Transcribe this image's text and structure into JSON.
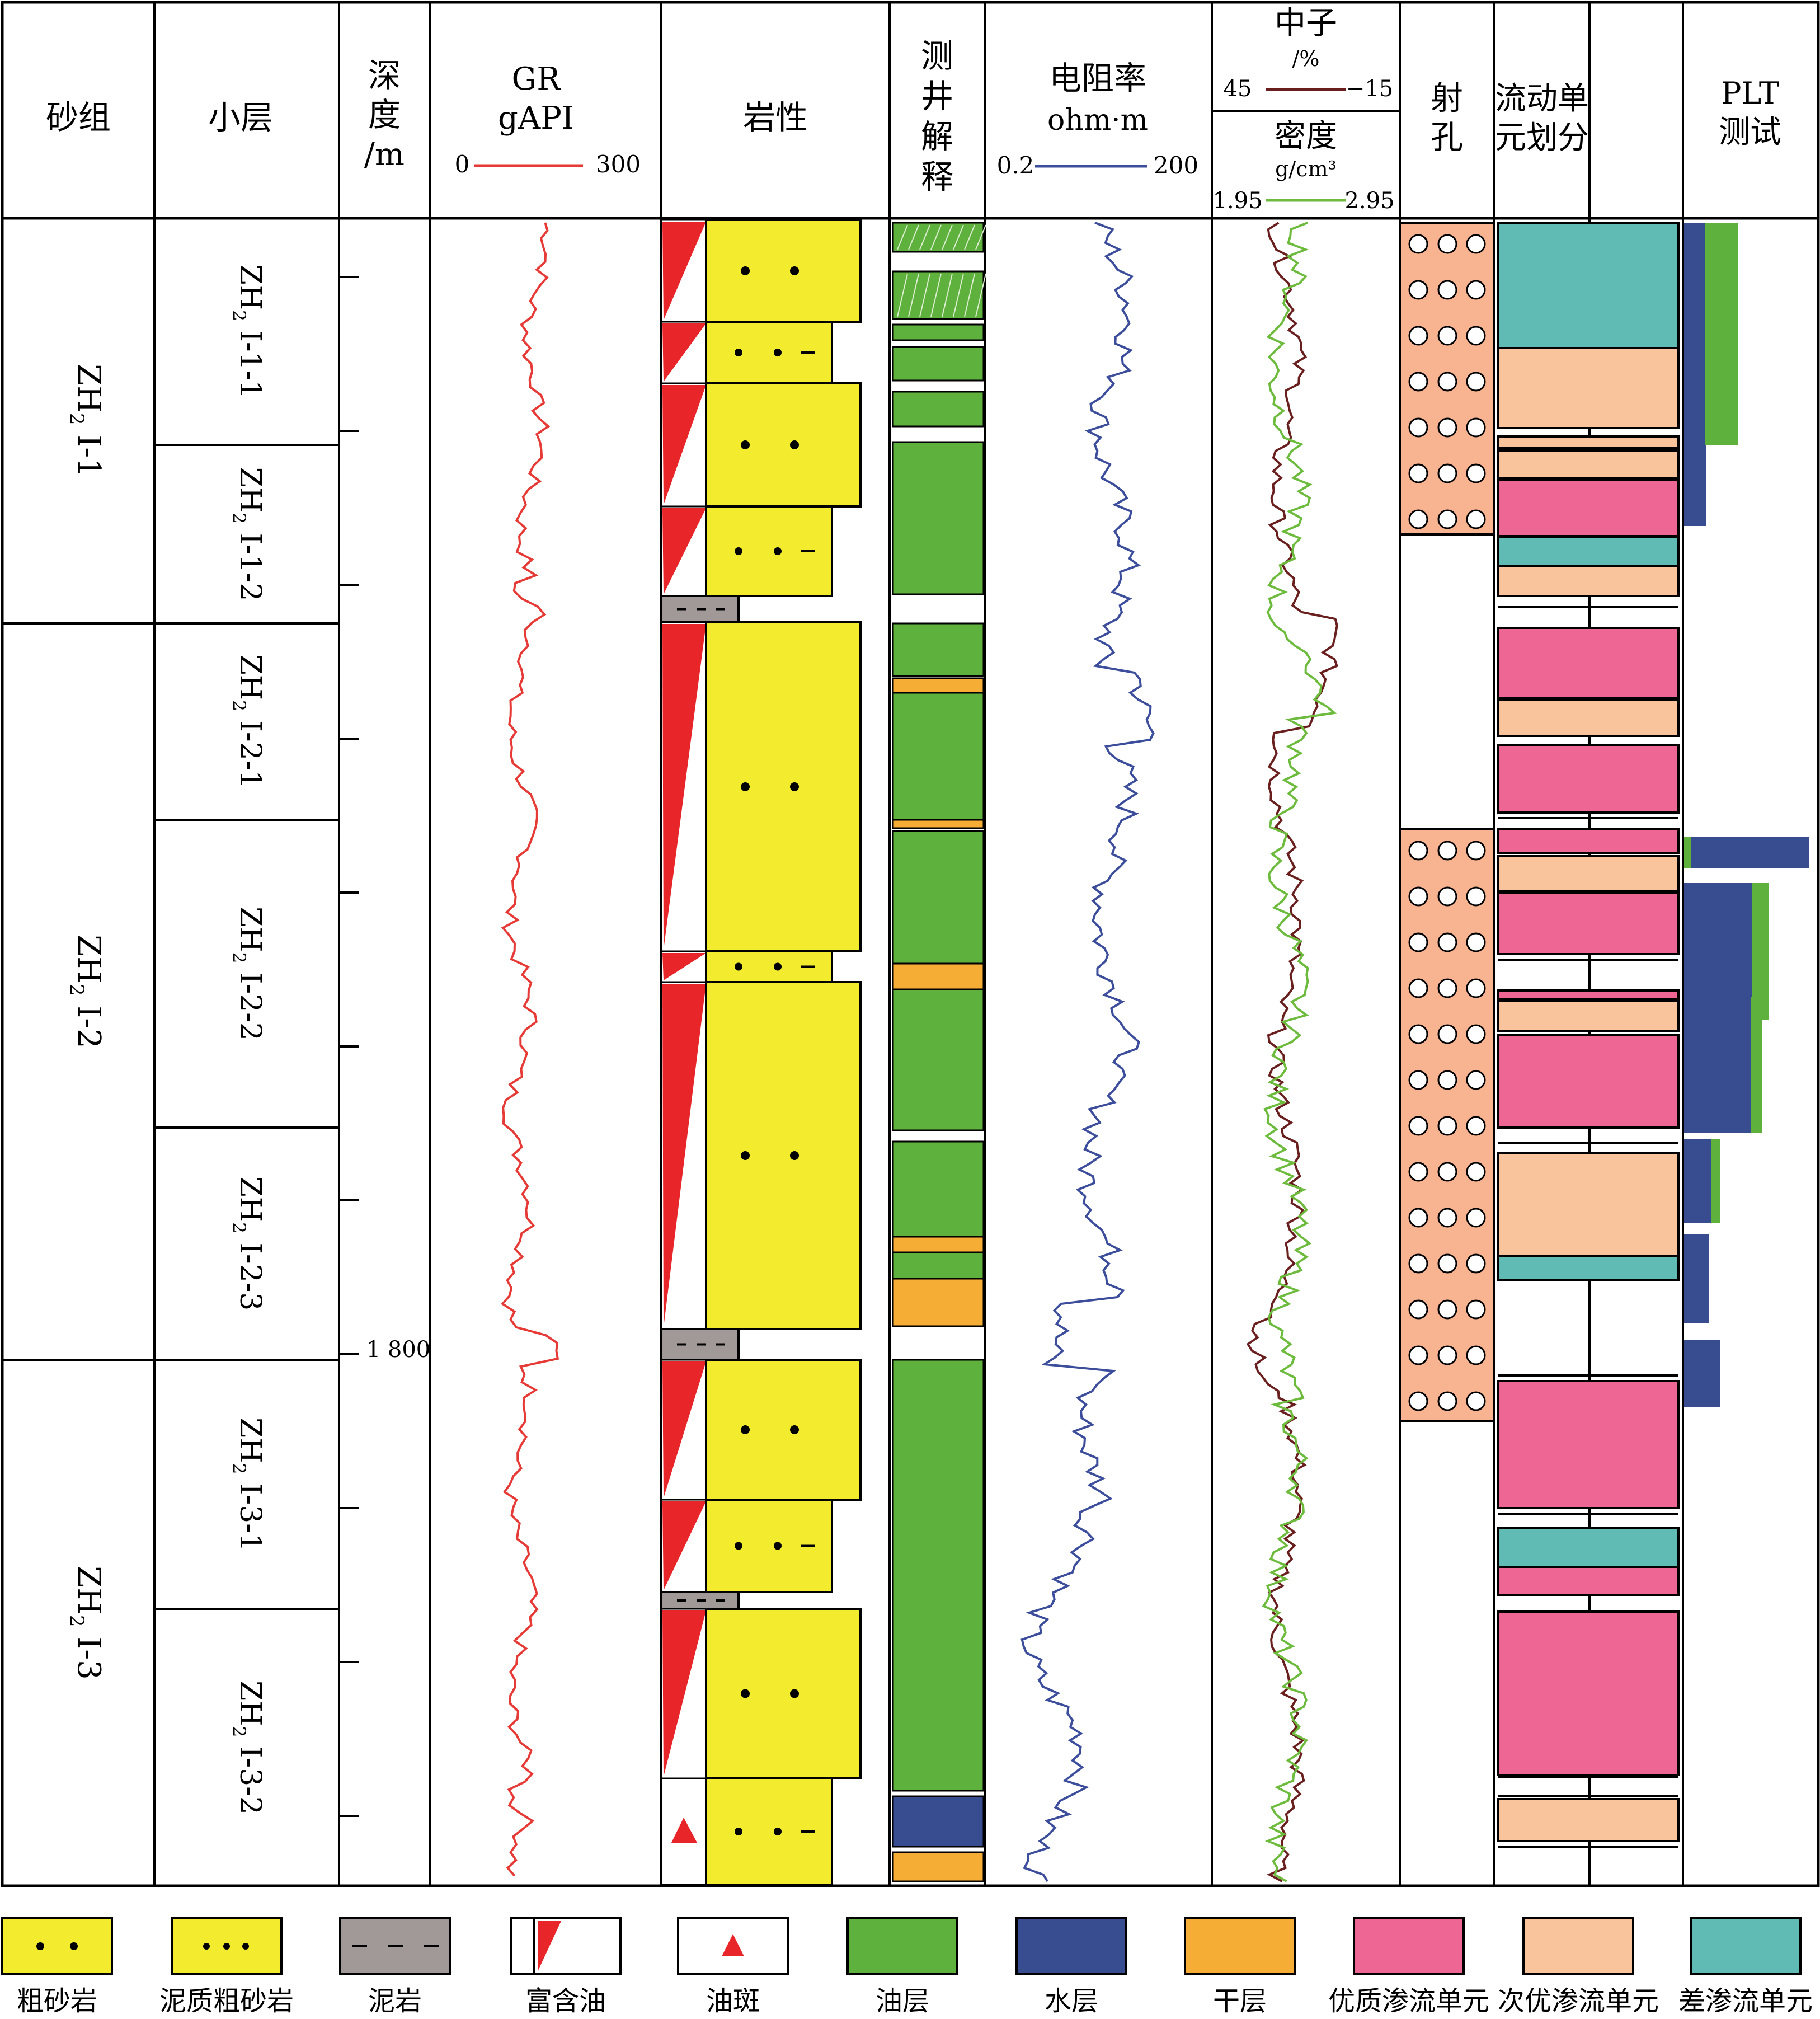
{
  "headers": {
    "sand_group": "砂组",
    "sublayer": "小层",
    "depth": [
      "深",
      "度",
      "/m"
    ],
    "gr": [
      "GR",
      "gAPI"
    ],
    "gr_min": "0",
    "gr_max": "300",
    "lithology": "岩性",
    "log_interp": [
      "测",
      "井",
      "解",
      "释"
    ],
    "resistivity": [
      "电阻率",
      "ohm·m"
    ],
    "res_min": "0.2",
    "res_max": "200",
    "neutron": [
      "中子",
      "/%"
    ],
    "neu_left": "45",
    "neu_right": "−15",
    "density": [
      "密度",
      "g/cm³"
    ],
    "den_left": "1.95",
    "den_right": "2.95",
    "perforation": [
      "射",
      "孔"
    ],
    "flow_unit": [
      "流动单",
      "元划分"
    ],
    "plt": [
      "PLT",
      "测试"
    ]
  },
  "sand_groups": [
    {
      "main": "ZH",
      "sub": "2",
      "tail": "Ⅰ-1"
    },
    {
      "main": "ZH",
      "sub": "2",
      "tail": "Ⅰ-2"
    },
    {
      "main": "ZH",
      "sub": "2",
      "tail": "Ⅰ-3"
    }
  ],
  "sublayers": [
    {
      "main": "ZH",
      "sub": "2",
      "tail": "Ⅰ-1-1"
    },
    {
      "main": "ZH",
      "sub": "2",
      "tail": "Ⅰ-1-2"
    },
    {
      "main": "ZH",
      "sub": "2",
      "tail": "Ⅰ-2-1"
    },
    {
      "main": "ZH",
      "sub": "2",
      "tail": "Ⅰ-2-2"
    },
    {
      "main": "ZH",
      "sub": "2",
      "tail": "Ⅰ-2-3"
    },
    {
      "main": "ZH",
      "sub": "2",
      "tail": "Ⅰ-3-1"
    },
    {
      "main": "ZH",
      "sub": "2",
      "tail": "Ⅰ-3-2"
    }
  ],
  "depth_label": "1 800",
  "colors": {
    "coarse_sand": "#f3eb2e",
    "mudstone": "#a09998",
    "oil_red": "#e8262a",
    "oil_layer": "#5eb13d",
    "water_layer": "#374d8f",
    "dry_layer": "#f6ad35",
    "superior_flow": "#ee6693",
    "secondary_flow": "#f9c39b",
    "poor_flow": "#5fbbb3",
    "gr_curve": "#e53a35",
    "res_curve": "#3b4d9b",
    "neutron_curve": "#6a1f1f",
    "density_curve": "#6dbb3d",
    "perf_fill": "#f8b490"
  },
  "legend": [
    {
      "label": "粗砂岩",
      "icon": "coarse-sandstone-swatch"
    },
    {
      "label": "泥质粗砂岩",
      "icon": "muddy-coarse-sandstone-swatch"
    },
    {
      "label": "泥岩",
      "icon": "mudstone-swatch"
    },
    {
      "label": "富含油",
      "icon": "oil-rich-swatch"
    },
    {
      "label": "油斑",
      "icon": "oil-spot-swatch"
    },
    {
      "label": "油层",
      "icon": "oil-layer-swatch"
    },
    {
      "label": "水层",
      "icon": "water-layer-swatch"
    },
    {
      "label": "干层",
      "icon": "dry-layer-swatch"
    },
    {
      "label": "优质渗流单元",
      "icon": "superior-flow-unit-swatch"
    },
    {
      "label": "次优渗流单元",
      "icon": "secondary-flow-unit-swatch"
    },
    {
      "label": "差渗流单元",
      "icon": "poor-flow-unit-swatch"
    }
  ]
}
